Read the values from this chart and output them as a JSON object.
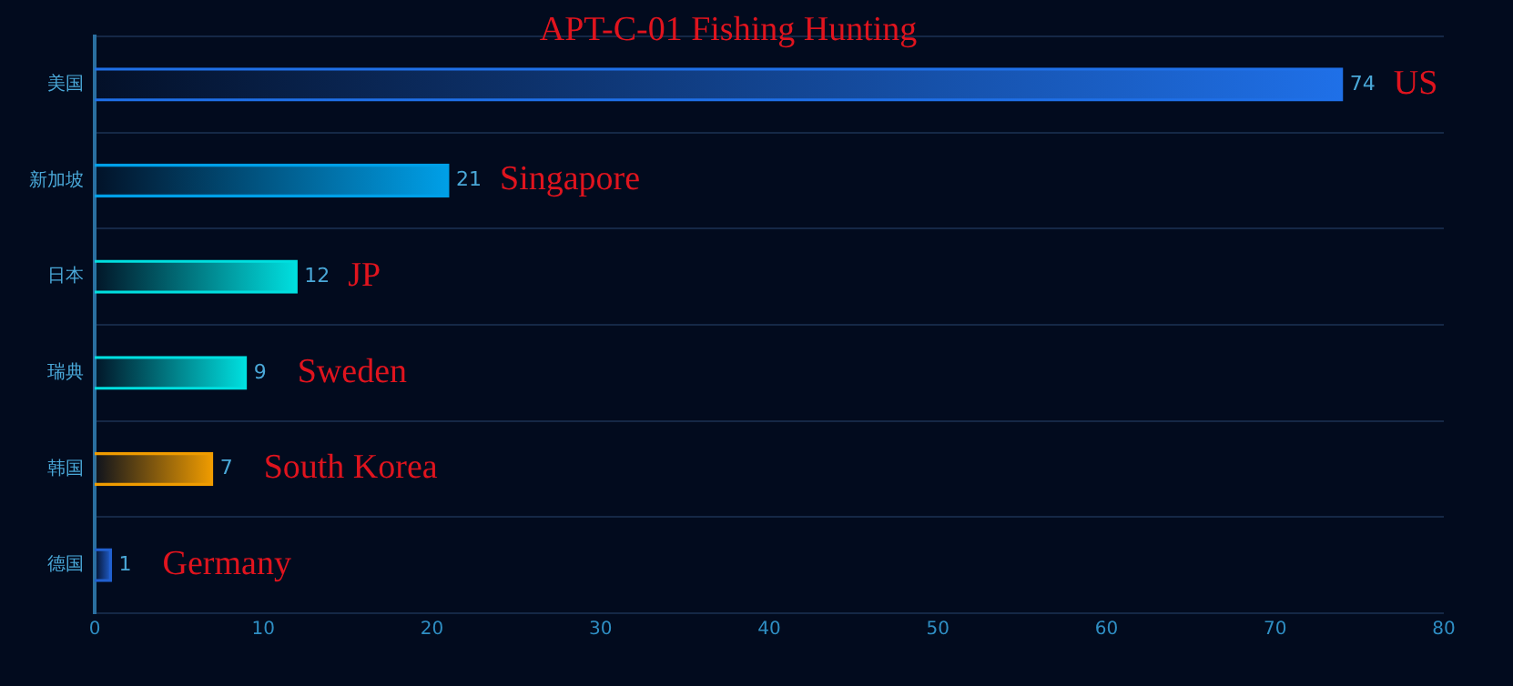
{
  "chart_data": {
    "type": "bar",
    "orientation": "horizontal",
    "title": "APT-C-01 Fishing Hunting",
    "categories": [
      "美国",
      "新加坡",
      "日本",
      "瑞典",
      "韩国",
      "德国"
    ],
    "values": [
      74,
      21,
      12,
      9,
      7,
      1
    ],
    "colors": [
      "#1f70e8",
      "#00a0e8",
      "#00e0e0",
      "#00e0e0",
      "#f09c00",
      "#2160d0"
    ],
    "xlim": [
      0,
      80
    ],
    "xticks": [
      0,
      10,
      20,
      30,
      40,
      50,
      60,
      70,
      80
    ],
    "grid": "y",
    "data_labels": true,
    "annotations": [
      {
        "text": "US",
        "x": 74,
        "y": "美国"
      },
      {
        "text": "Singapore",
        "x": 21,
        "y": "新加坡"
      },
      {
        "text": "JP",
        "x": 12,
        "y": "日本"
      },
      {
        "text": "Sweden",
        "x": 9,
        "y": "瑞典"
      },
      {
        "text": "South Korea",
        "x": 7,
        "y": "韩国"
      },
      {
        "text": "Germany",
        "x": 1,
        "y": "德国"
      }
    ]
  }
}
